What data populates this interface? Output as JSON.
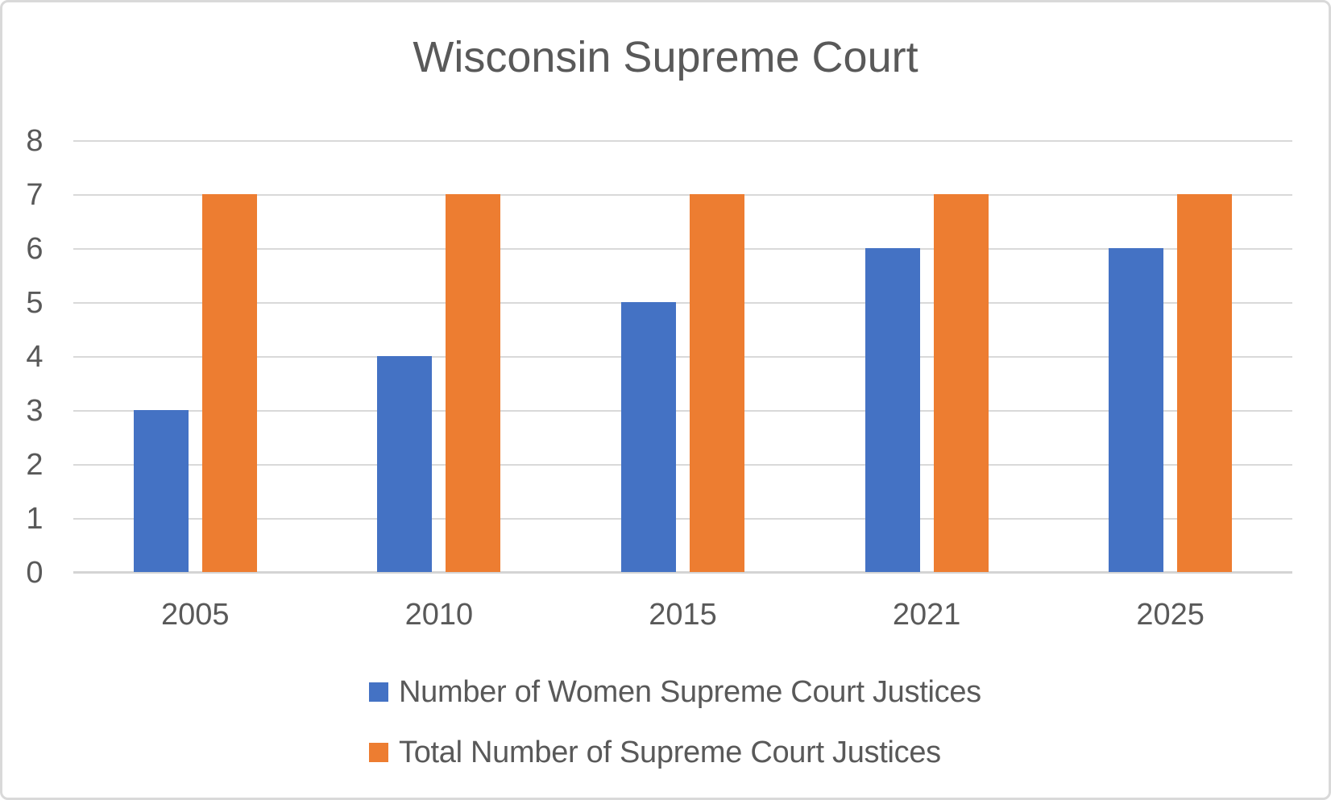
{
  "chart_data": {
    "type": "bar",
    "title": "Wisconsin Supreme Court",
    "categories": [
      "2005",
      "2010",
      "2015",
      "2021",
      "2025"
    ],
    "series": [
      {
        "name": "Number of Women Supreme Court Justices",
        "color": "#4472C4",
        "values": [
          3,
          4,
          5,
          6,
          6
        ]
      },
      {
        "name": "Total Number of Supreme Court Justices",
        "color": "#ED7D31",
        "values": [
          7,
          7,
          7,
          7,
          7
        ]
      }
    ],
    "xlabel": "",
    "ylabel": "",
    "ylim": [
      0,
      8
    ],
    "yticks": [
      0,
      1,
      2,
      3,
      4,
      5,
      6,
      7,
      8
    ],
    "grid": true,
    "legend_position": "bottom"
  },
  "colors": {
    "series_blue": "#4472C4",
    "series_orange": "#ED7D31",
    "gridline": "#D9D9D9",
    "axis_line": "#D4D4D4",
    "text": "#595959",
    "frame_border": "#D9D9D9",
    "background": "#FFFFFF"
  }
}
